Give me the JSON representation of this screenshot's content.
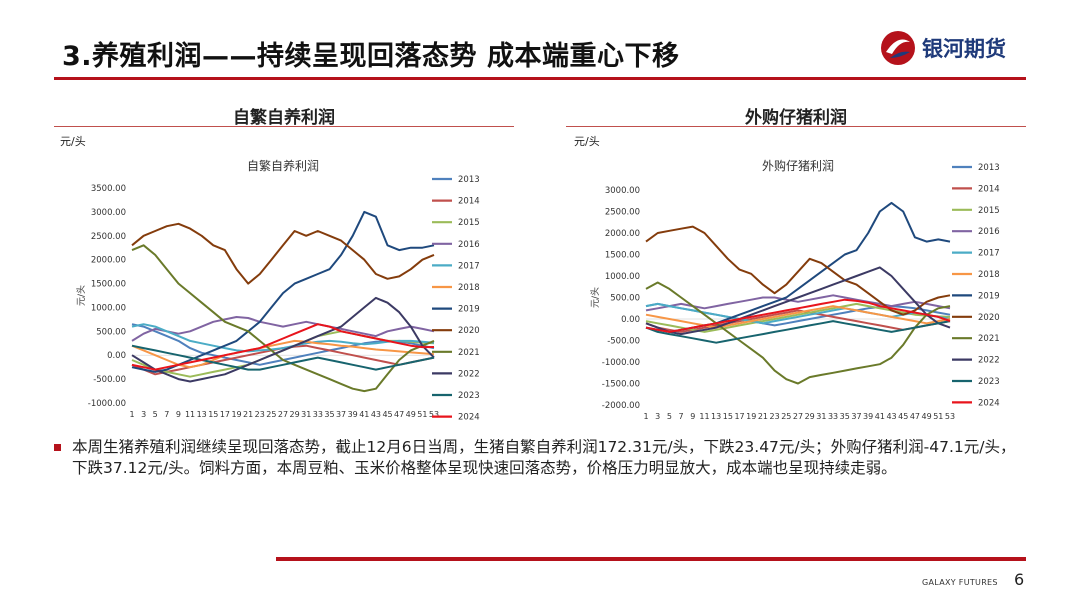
{
  "header": {
    "title": "3.养殖利润——持续呈现回落态势 成本端重心下移",
    "logo_text": "银河期货"
  },
  "footer": {
    "brand": "GALAXY FUTURES",
    "page": "6"
  },
  "commentary": "本周生猪养殖利润继续呈现回落态势，截止12月6日当周，生猪自繁自养利润172.31元/头，下跌23.47元/头；外购仔猪利润-47.1元/头，下跌37.12元/头。饲料方面，本周豆粕、玉米价格整体呈现快速回落态势，价格压力明显放大，成本端也呈现持续走弱。",
  "colors": {
    "brand_red": "#b5121b",
    "logo_blue": "#1f3a7a"
  },
  "chart_data": [
    {
      "type": "line",
      "panel_title": "自繁自养利润",
      "unit_label": "元/头",
      "title": "自繁自养利润",
      "ylabel": "元/头",
      "ylim": [
        -1000,
        3500
      ],
      "yticks": [
        "3500.00",
        "3000.00",
        "2500.00",
        "2000.00",
        "1500.00",
        "1000.00",
        "500.00",
        "0.00",
        "-500.00",
        "-1000.00"
      ],
      "x": [
        1,
        3,
        5,
        7,
        9,
        11,
        13,
        15,
        17,
        19,
        21,
        23,
        25,
        27,
        29,
        31,
        33,
        35,
        37,
        39,
        41,
        43,
        45,
        47,
        49,
        51,
        53
      ],
      "legend_position": "right",
      "series": [
        {
          "name": "2013",
          "color": "#4f81bd",
          "values": [
            650,
            600,
            500,
            400,
            300,
            150,
            50,
            0,
            -50,
            -100,
            -150,
            -200,
            -150,
            -100,
            -50,
            0,
            50,
            100,
            150,
            200,
            250,
            280,
            300,
            280,
            250,
            200,
            150
          ]
        },
        {
          "name": "2014",
          "color": "#c0504d",
          "values": [
            -200,
            -300,
            -400,
            -350,
            -300,
            -250,
            -200,
            -150,
            -100,
            -50,
            0,
            50,
            100,
            150,
            180,
            200,
            150,
            100,
            50,
            0,
            -50,
            -100,
            -150,
            -200,
            -150,
            -100,
            -50
          ]
        },
        {
          "name": "2015",
          "color": "#9bbb59",
          "values": [
            -100,
            -200,
            -300,
            -350,
            -400,
            -450,
            -400,
            -350,
            -300,
            -250,
            -200,
            -100,
            0,
            100,
            200,
            300,
            400,
            450,
            500,
            450,
            400,
            350,
            300,
            300,
            280,
            260,
            250
          ]
        },
        {
          "name": "2016",
          "color": "#8064a2",
          "values": [
            300,
            450,
            550,
            500,
            450,
            500,
            600,
            700,
            750,
            800,
            780,
            700,
            650,
            600,
            650,
            700,
            650,
            600,
            550,
            500,
            450,
            400,
            500,
            550,
            600,
            550,
            500
          ]
        },
        {
          "name": "2017",
          "color": "#4bacc6",
          "values": [
            600,
            650,
            600,
            500,
            400,
            300,
            250,
            200,
            150,
            100,
            80,
            100,
            120,
            150,
            200,
            250,
            280,
            300,
            280,
            250,
            230,
            250,
            280,
            300,
            300,
            280,
            260
          ]
        },
        {
          "name": "2018",
          "color": "#f79646",
          "values": [
            200,
            100,
            0,
            -100,
            -200,
            -250,
            -200,
            -100,
            0,
            50,
            100,
            150,
            200,
            250,
            300,
            280,
            250,
            230,
            200,
            180,
            150,
            120,
            100,
            80,
            60,
            40,
            20
          ]
        },
        {
          "name": "2019",
          "color": "#1f497d",
          "values": [
            -250,
            -300,
            -350,
            -300,
            -200,
            -100,
            0,
            100,
            200,
            300,
            500,
            700,
            1000,
            1300,
            1500,
            1600,
            1700,
            1800,
            2100,
            2500,
            3000,
            2900,
            2300,
            2200,
            2250,
            2250,
            2300
          ]
        },
        {
          "name": "2020",
          "color": "#843c0c",
          "values": [
            2300,
            2500,
            2600,
            2700,
            2750,
            2650,
            2500,
            2300,
            2200,
            1800,
            1500,
            1700,
            2000,
            2300,
            2600,
            2500,
            2600,
            2500,
            2400,
            2200,
            2000,
            1700,
            1600,
            1650,
            1800,
            2000,
            2100
          ]
        },
        {
          "name": "2021",
          "color": "#6a7a2a",
          "values": [
            2200,
            2300,
            2100,
            1800,
            1500,
            1300,
            1100,
            900,
            700,
            600,
            500,
            300,
            100,
            -100,
            -200,
            -300,
            -400,
            -500,
            -600,
            -700,
            -750,
            -700,
            -400,
            -100,
            100,
            200,
            300
          ]
        },
        {
          "name": "2022",
          "color": "#3c3a64",
          "values": [
            0,
            -150,
            -300,
            -400,
            -500,
            -550,
            -500,
            -450,
            -400,
            -300,
            -200,
            -100,
            0,
            100,
            200,
            300,
            400,
            500,
            600,
            800,
            1000,
            1200,
            1100,
            900,
            600,
            200,
            -50
          ]
        },
        {
          "name": "2023",
          "color": "#17646e",
          "values": [
            200,
            150,
            100,
            50,
            0,
            -50,
            -100,
            -150,
            -200,
            -250,
            -300,
            -300,
            -250,
            -200,
            -150,
            -100,
            -50,
            -100,
            -150,
            -200,
            -250,
            -300,
            -250,
            -200,
            -150,
            -100,
            -50
          ]
        },
        {
          "name": "2024",
          "color": "#e8141c",
          "values": [
            -200,
            -250,
            -300,
            -250,
            -200,
            -150,
            -100,
            -50,
            0,
            50,
            100,
            150,
            250,
            350,
            450,
            550,
            650,
            600,
            500,
            450,
            400,
            350,
            300,
            250,
            200,
            170,
            172
          ]
        }
      ]
    },
    {
      "type": "line",
      "panel_title": "外购仔猪利润",
      "unit_label": "元/头",
      "title": "外购仔猪利润",
      "ylabel": "元/头",
      "ylim": [
        -2000,
        3000
      ],
      "yticks": [
        "3000.00",
        "2500.00",
        "2000.00",
        "1500.00",
        "1000.00",
        "500.00",
        "0.00",
        "-500.00",
        "-1000.00",
        "-1500.00",
        "-2000.00"
      ],
      "x": [
        1,
        3,
        5,
        7,
        9,
        11,
        13,
        15,
        17,
        19,
        21,
        23,
        25,
        27,
        29,
        31,
        33,
        35,
        37,
        39,
        41,
        43,
        45,
        47,
        49,
        51,
        53
      ],
      "legend_position": "right",
      "series": [
        {
          "name": "2013",
          "color": "#4f81bd",
          "values": [
            300,
            350,
            300,
            250,
            200,
            150,
            100,
            50,
            0,
            -50,
            -100,
            -150,
            -100,
            -50,
            0,
            50,
            100,
            150,
            200,
            250,
            280,
            300,
            280,
            250,
            200,
            150,
            100
          ]
        },
        {
          "name": "2014",
          "color": "#c0504d",
          "values": [
            -100,
            -200,
            -250,
            -300,
            -250,
            -200,
            -150,
            -100,
            -50,
            0,
            50,
            100,
            150,
            200,
            150,
            100,
            50,
            0,
            -50,
            -100,
            -150,
            -200,
            -250,
            -200,
            -150,
            -100,
            -50
          ]
        },
        {
          "name": "2015",
          "color": "#9bbb59",
          "values": [
            -50,
            -100,
            -150,
            -200,
            -250,
            -300,
            -250,
            -200,
            -150,
            -100,
            -50,
            0,
            50,
            100,
            150,
            200,
            250,
            300,
            350,
            300,
            250,
            200,
            150,
            100,
            80,
            60,
            50
          ]
        },
        {
          "name": "2016",
          "color": "#8064a2",
          "values": [
            200,
            250,
            300,
            350,
            300,
            250,
            300,
            350,
            400,
            450,
            500,
            500,
            450,
            400,
            450,
            500,
            550,
            500,
            450,
            400,
            350,
            300,
            350,
            400,
            350,
            300,
            250
          ]
        },
        {
          "name": "2017",
          "color": "#4bacc6",
          "values": [
            300,
            350,
            300,
            250,
            200,
            150,
            100,
            50,
            0,
            -50,
            -100,
            -50,
            0,
            50,
            100,
            150,
            200,
            250,
            200,
            150,
            100,
            50,
            100,
            150,
            100,
            50,
            0
          ]
        },
        {
          "name": "2018",
          "color": "#f79646",
          "values": [
            100,
            50,
            0,
            -50,
            -100,
            -150,
            -200,
            -150,
            -100,
            -50,
            0,
            50,
            100,
            150,
            200,
            250,
            300,
            250,
            200,
            150,
            100,
            50,
            0,
            -50,
            -100,
            -50,
            0
          ]
        },
        {
          "name": "2019",
          "color": "#1f497d",
          "values": [
            -200,
            -250,
            -300,
            -250,
            -200,
            -150,
            -100,
            0,
            100,
            200,
            300,
            400,
            500,
            700,
            900,
            1100,
            1300,
            1500,
            1600,
            2000,
            2500,
            2700,
            2500,
            1900,
            1800,
            1850,
            1800
          ]
        },
        {
          "name": "2020",
          "color": "#843c0c",
          "values": [
            1800,
            2000,
            2050,
            2100,
            2150,
            2000,
            1700,
            1400,
            1150,
            1050,
            800,
            600,
            800,
            1100,
            1400,
            1300,
            1100,
            900,
            800,
            600,
            400,
            200,
            100,
            200,
            400,
            500,
            550
          ]
        },
        {
          "name": "2021",
          "color": "#6a7a2a",
          "values": [
            700,
            850,
            700,
            500,
            300,
            100,
            -100,
            -300,
            -500,
            -700,
            -900,
            -1200,
            -1400,
            -1500,
            -1350,
            -1300,
            -1250,
            -1200,
            -1150,
            -1100,
            -1050,
            -900,
            -600,
            -200,
            100,
            250,
            300
          ]
        },
        {
          "name": "2022",
          "color": "#3c3a64",
          "values": [
            -100,
            -200,
            -300,
            -350,
            -300,
            -250,
            -200,
            -100,
            0,
            100,
            200,
            300,
            400,
            500,
            600,
            700,
            800,
            900,
            1000,
            1100,
            1200,
            1000,
            700,
            400,
            100,
            -100,
            -200
          ]
        },
        {
          "name": "2023",
          "color": "#17646e",
          "values": [
            -200,
            -300,
            -350,
            -400,
            -450,
            -500,
            -550,
            -500,
            -450,
            -400,
            -350,
            -300,
            -250,
            -200,
            -150,
            -100,
            -50,
            -100,
            -150,
            -200,
            -250,
            -300,
            -250,
            -200,
            -150,
            -100,
            -50
          ]
        },
        {
          "name": "2024",
          "color": "#e8141c",
          "values": [
            -200,
            -250,
            -300,
            -250,
            -200,
            -150,
            -100,
            -50,
            0,
            50,
            100,
            150,
            200,
            250,
            300,
            350,
            400,
            450,
            420,
            380,
            300,
            250,
            200,
            150,
            100,
            50,
            -47
          ]
        }
      ]
    }
  ]
}
